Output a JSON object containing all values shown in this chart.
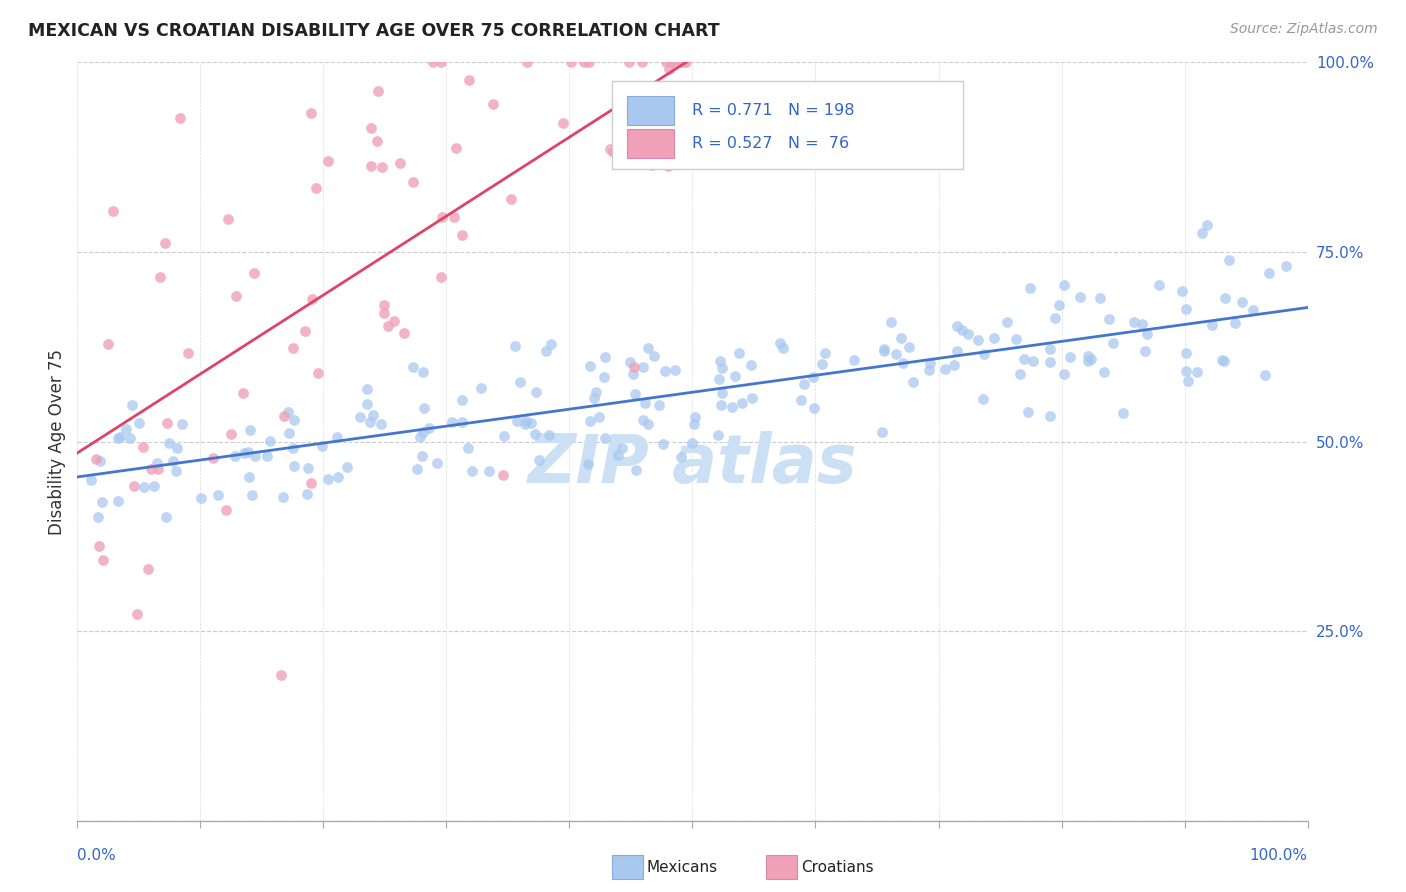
{
  "title": "MEXICAN VS CROATIAN DISABILITY AGE OVER 75 CORRELATION CHART",
  "source_text": "Source: ZipAtlas.com",
  "ylabel": "Disability Age Over 75",
  "xlim": [
    0.0,
    1.0
  ],
  "ylim": [
    0.0,
    1.0
  ],
  "ytick_labels": [
    "25.0%",
    "50.0%",
    "75.0%",
    "100.0%"
  ],
  "ytick_values": [
    0.25,
    0.5,
    0.75,
    1.0
  ],
  "mexican_R": 0.771,
  "mexican_N": 198,
  "croatian_R": 0.527,
  "croatian_N": 76,
  "mexican_color": "#a8c8f0",
  "croatian_color": "#f0a0b8",
  "mexican_line_color": "#4477cc",
  "croatian_line_color": "#dd4466",
  "legend_R_color": "#3366cc",
  "background_color": "#ffffff",
  "grid_color": "#cccccc",
  "title_color": "#222222",
  "watermark_color": "#cce0f5"
}
